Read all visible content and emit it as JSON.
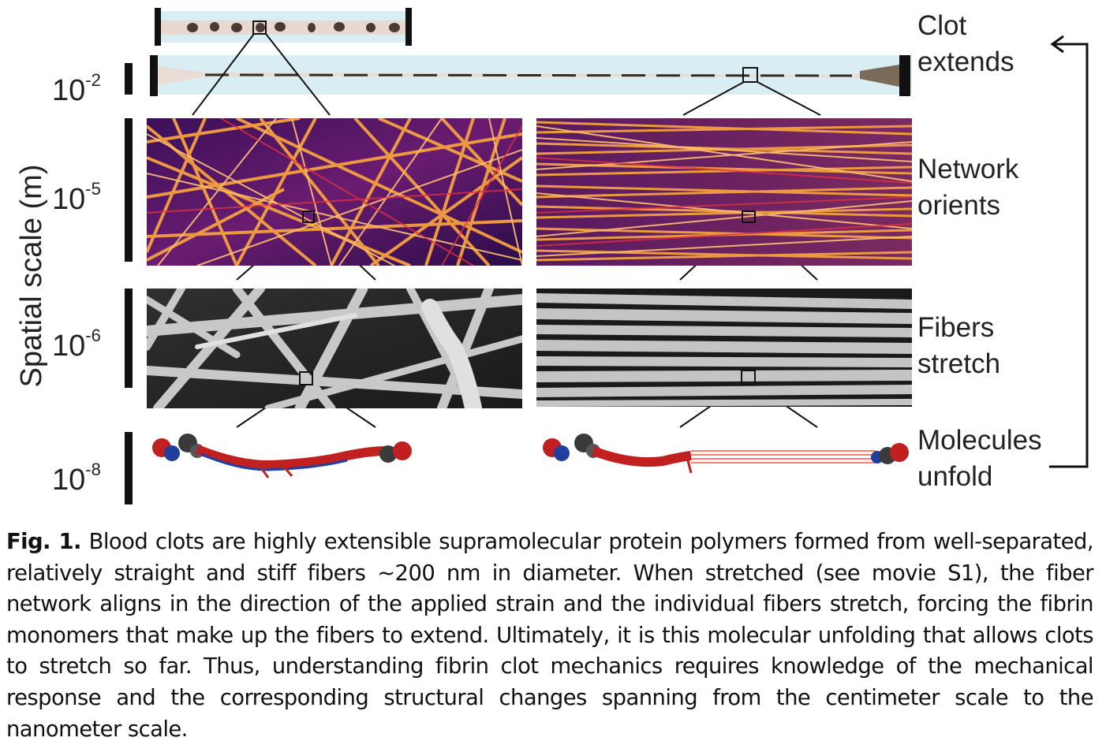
{
  "figure": {
    "axis_title": "Spatial scale (m)",
    "scales": [
      {
        "base": "10",
        "exp": "-2"
      },
      {
        "base": "10",
        "exp": "-5"
      },
      {
        "base": "10",
        "exp": "-6"
      },
      {
        "base": "10",
        "exp": "-8"
      }
    ],
    "labels": [
      {
        "line1": "Clot",
        "line2": "extends"
      },
      {
        "line1": "Network",
        "line2": "orients"
      },
      {
        "line1": "Fibers",
        "line2": "stretch"
      },
      {
        "line1": "Molecules",
        "line2": "unfold"
      }
    ]
  },
  "caption": {
    "label": "Fig. 1.",
    "text": "Blood clots are highly extensible supramolecular protein polymers formed from well-separated, relatively straight and stiff fibers ~200 nm in diameter. When stretched (see movie S1), the fiber network aligns in the direction of the applied strain and the individual fibers stretch, forcing the fibrin monomers that make up the fibers to extend. Ultimately, it is this molecular unfolding that allows clots to stretch so far. Thus, understanding fibrin clot mechanics requires knowledge of the mechanical response and the corresponding structural changes spanning from the centimeter scale to the nanometer scale."
  }
}
